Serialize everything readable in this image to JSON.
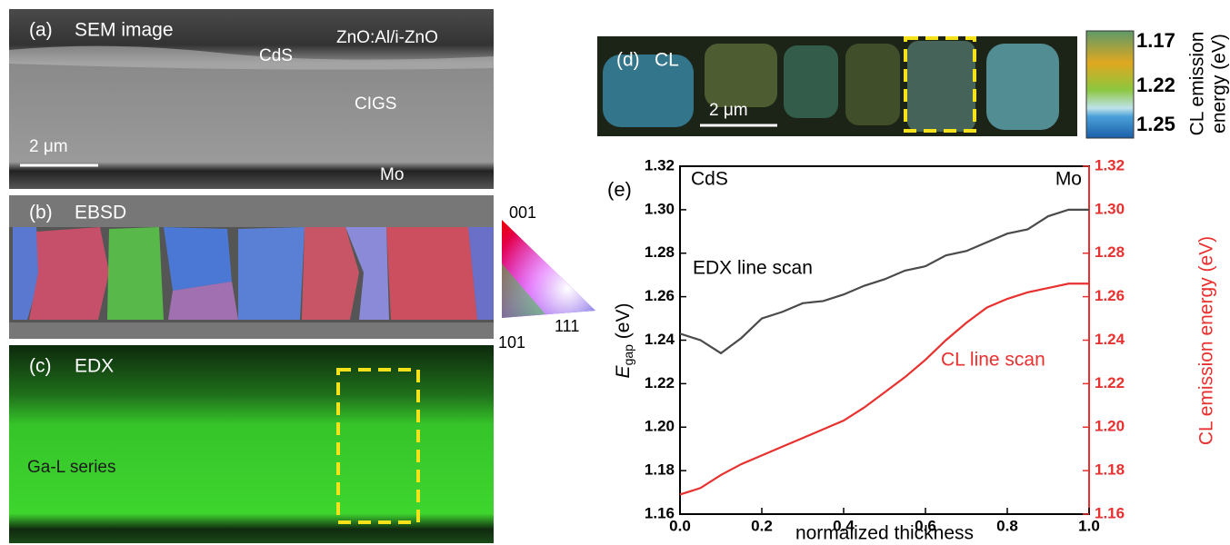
{
  "panels": {
    "a": {
      "label": "(a)",
      "title": "SEM image",
      "annotations": [
        "CdS",
        "ZnO:Al/i-ZnO",
        "CIGS",
        "Mo"
      ],
      "scale_bar": "2 μm"
    },
    "b": {
      "label": "(b)",
      "title": "EBSD",
      "orientation_key": [
        "001",
        "101",
        "111"
      ]
    },
    "c": {
      "label": "(c)",
      "title": "EDX",
      "annotation": "Ga-L series"
    },
    "d": {
      "label": "(d)",
      "title": "CL",
      "scale_bar": "2 μm",
      "colorbar": {
        "label": [
          "CL emission",
          "energy (eV)"
        ],
        "ticks": [
          1.17,
          1.22,
          1.25
        ]
      }
    }
  },
  "chart_data": {
    "type": "line",
    "label": "(e)",
    "annotations": {
      "left": "CdS",
      "right": "Mo",
      "edx": "EDX line scan",
      "cl": "CL line scan"
    },
    "xlabel": "normalized thickness",
    "ylabel": {
      "main": "E",
      "sub": "gap",
      "unit": " (eV)"
    },
    "y2label": "CL emission energy (eV)",
    "x": [
      0,
      0.05,
      0.1,
      0.15,
      0.2,
      0.25,
      0.3,
      0.35,
      0.4,
      0.45,
      0.5,
      0.55,
      0.6,
      0.65,
      0.7,
      0.75,
      0.8,
      0.85,
      0.9,
      0.95,
      1.0
    ],
    "xlim": [
      0,
      1
    ],
    "xticks": [
      {
        "value": 0,
        "label": "0.0"
      },
      0.2,
      0.4,
      0.6,
      0.8,
      {
        "value": 1,
        "label": "1.0"
      }
    ],
    "ylim": [
      1.16,
      1.32
    ],
    "yticks": [
      1.16,
      1.18,
      {
        "value": 1.2,
        "label": "1.20"
      },
      1.22,
      1.24,
      1.26,
      1.28,
      {
        "value": 1.3,
        "label": "1.30"
      },
      1.32
    ],
    "y2lim": [
      1.16,
      1.32
    ],
    "y2ticks": [
      1.16,
      1.18,
      {
        "value": 1.2,
        "label": "1.20"
      },
      1.22,
      1.24,
      1.26,
      1.28,
      {
        "value": 1.3,
        "label": "1.30"
      },
      1.32
    ],
    "series": [
      {
        "name": "EDX line scan",
        "color": "#4a4a4a",
        "values": [
          1.243,
          1.24,
          1.234,
          1.241,
          1.25,
          1.253,
          1.257,
          1.258,
          1.261,
          1.265,
          1.268,
          1.272,
          1.274,
          1.279,
          1.281,
          1.285,
          1.289,
          1.291,
          1.297,
          1.3,
          1.3
        ]
      },
      {
        "name": "CL line scan",
        "color": "#e8312f",
        "axis": "y2",
        "values": [
          1.169,
          1.172,
          1.178,
          1.183,
          1.187,
          1.191,
          1.195,
          1.199,
          1.203,
          1.209,
          1.216,
          1.223,
          1.231,
          1.24,
          1.248,
          1.255,
          1.259,
          1.262,
          1.264,
          1.266,
          1.266
        ]
      }
    ]
  }
}
